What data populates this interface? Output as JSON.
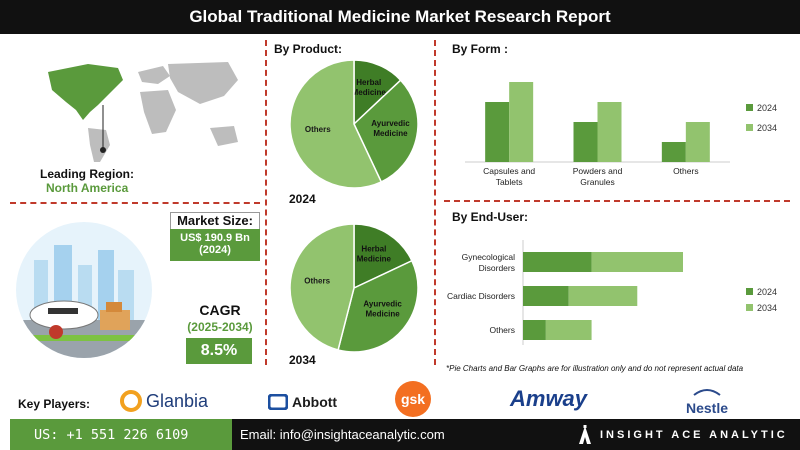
{
  "title": "Global Traditional Medicine Market Research Report",
  "left": {
    "leading_region_label": "Leading Region:",
    "leading_region_value": "North America",
    "market_size_label": "Market Size:",
    "market_size_value": "US$ 190.9 Bn",
    "market_size_year": "(2024)",
    "cagr_label": "CAGR",
    "cagr_period": "(2025-2034)",
    "cagr_value": "8.5%"
  },
  "sections": {
    "by_product": "By Product:",
    "by_form": "By Form :",
    "by_end_user": "By End-User:"
  },
  "colors": {
    "dark_green": "#5a9a3c",
    "light_green": "#92c36e",
    "accent_red": "#c0392b",
    "bottom_green": "#5a9a3c"
  },
  "chart_data": [
    {
      "type": "pie",
      "year_label": "2024",
      "categories": [
        "Herbal Medicine",
        "Ayurvedic Medicine",
        "Others"
      ],
      "values": [
        13,
        30,
        57
      ]
    },
    {
      "type": "pie",
      "year_label": "2034",
      "categories": [
        "Herbal Medicine",
        "Ayurvedic Medicine",
        "Others"
      ],
      "values": [
        18,
        36,
        46
      ]
    },
    {
      "type": "bar",
      "categories": [
        "Capsules and Tablets",
        "Powders and Granules",
        "Others"
      ],
      "series": [
        {
          "name": "2024",
          "values": [
            3,
            2,
            1
          ]
        },
        {
          "name": "2034",
          "values": [
            4,
            3,
            2
          ]
        }
      ]
    },
    {
      "type": "bar",
      "orientation": "horizontal",
      "stacked": true,
      "categories": [
        "Gynecological Disorders",
        "Cardiac Disorders",
        "Others"
      ],
      "series": [
        {
          "name": "2024",
          "values": [
            3,
            2,
            1
          ]
        },
        {
          "name": "2034",
          "values": [
            4,
            3,
            2
          ]
        }
      ]
    }
  ],
  "disclaimer": "*Pie Charts and Bar Graphs are for illustration only and do not represent actual data",
  "key_players_label": "Key Players:",
  "players": [
    "Glanbia",
    "Abbott",
    "gsk",
    "Amway",
    "Nestle"
  ],
  "footer": {
    "phone": "US: +1 551 226 6109",
    "email": "Email: info@insightaceanalytic.com",
    "brand": "INSIGHT ACE ANALYTIC"
  }
}
